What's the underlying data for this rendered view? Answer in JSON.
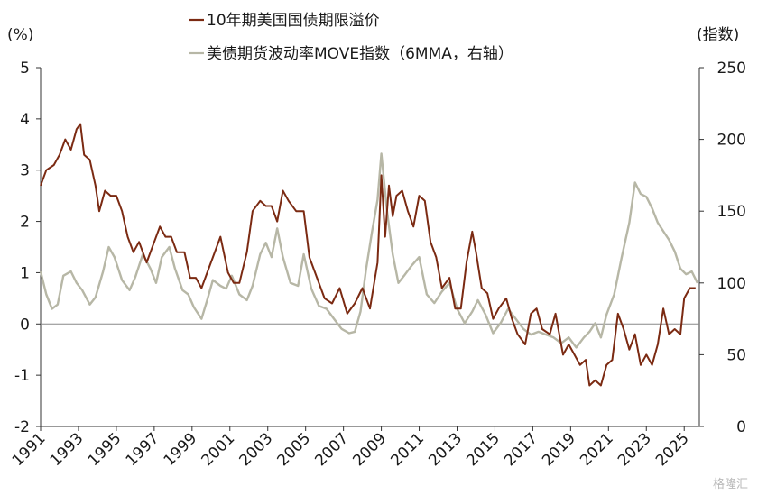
{
  "chart_data": {
    "type": "line",
    "left_unit": "(%)",
    "right_unit": "(指数)",
    "left_ylim": [
      -2,
      5
    ],
    "left_ticks": [
      "5",
      "4",
      "3",
      "2",
      "1",
      "0",
      "-1",
      "-2"
    ],
    "right_ylim": [
      0,
      250
    ],
    "right_ticks": [
      "250",
      "200",
      "150",
      "100",
      "50",
      "0"
    ],
    "xlim": [
      1991,
      2025.8
    ],
    "x_ticks": [
      "1991",
      "1993",
      "1995",
      "1997",
      "1999",
      "2001",
      "2003",
      "2005",
      "2007",
      "2009",
      "2011",
      "2013",
      "2015",
      "2017",
      "2019",
      "2021",
      "2023",
      "2025"
    ],
    "legend_position": "top-center",
    "series": [
      {
        "name": "10年期美国国债期限溢价",
        "axis": "left",
        "color": "#7b2a12",
        "x": [
          1991.0,
          1991.3,
          1991.7,
          1992.0,
          1992.3,
          1992.6,
          1992.9,
          1993.1,
          1993.3,
          1993.6,
          1993.9,
          1994.1,
          1994.4,
          1994.7,
          1995.0,
          1995.3,
          1995.6,
          1995.9,
          1996.2,
          1996.6,
          1997.0,
          1997.3,
          1997.6,
          1997.9,
          1998.2,
          1998.6,
          1998.9,
          1999.2,
          1999.5,
          1999.8,
          2000.1,
          2000.5,
          2000.9,
          2001.2,
          2001.5,
          2001.9,
          2002.2,
          2002.6,
          2002.9,
          2003.2,
          2003.5,
          2003.8,
          2004.1,
          2004.5,
          2004.9,
          2005.2,
          2005.6,
          2006.0,
          2006.4,
          2006.8,
          2007.2,
          2007.6,
          2008.0,
          2008.4,
          2008.8,
          2009.0,
          2009.2,
          2009.4,
          2009.6,
          2009.8,
          2010.1,
          2010.4,
          2010.7,
          2011.0,
          2011.3,
          2011.6,
          2011.9,
          2012.2,
          2012.6,
          2012.9,
          2013.2,
          2013.5,
          2013.8,
          2014.0,
          2014.3,
          2014.6,
          2014.9,
          2015.2,
          2015.6,
          2015.9,
          2016.2,
          2016.6,
          2016.9,
          2017.2,
          2017.5,
          2017.9,
          2018.2,
          2018.6,
          2018.9,
          2019.2,
          2019.5,
          2019.8,
          2020.0,
          2020.3,
          2020.6,
          2020.9,
          2021.2,
          2021.5,
          2021.8,
          2022.1,
          2022.4,
          2022.7,
          2023.0,
          2023.3,
          2023.6,
          2023.9,
          2024.2,
          2024.5,
          2024.8,
          2025.0,
          2025.3,
          2025.6
        ],
        "values": [
          2.7,
          3.0,
          3.1,
          3.3,
          3.6,
          3.4,
          3.8,
          3.9,
          3.3,
          3.2,
          2.7,
          2.2,
          2.6,
          2.5,
          2.5,
          2.2,
          1.7,
          1.4,
          1.6,
          1.2,
          1.6,
          1.9,
          1.7,
          1.7,
          1.4,
          1.4,
          0.9,
          0.9,
          0.7,
          1.0,
          1.3,
          1.7,
          1.0,
          0.8,
          0.8,
          1.4,
          2.2,
          2.4,
          2.3,
          2.3,
          2.0,
          2.6,
          2.4,
          2.2,
          2.2,
          1.3,
          0.9,
          0.5,
          0.4,
          0.7,
          0.2,
          0.4,
          0.7,
          0.3,
          1.2,
          2.9,
          1.7,
          2.7,
          2.1,
          2.5,
          2.6,
          2.2,
          1.9,
          2.5,
          2.4,
          1.6,
          1.3,
          0.7,
          0.9,
          0.3,
          0.3,
          1.2,
          1.8,
          1.4,
          0.7,
          0.6,
          0.1,
          0.3,
          0.5,
          0.1,
          -0.2,
          -0.4,
          0.2,
          0.3,
          -0.1,
          -0.2,
          0.2,
          -0.6,
          -0.4,
          -0.6,
          -0.8,
          -0.7,
          -1.2,
          -1.1,
          -1.2,
          -0.8,
          -0.7,
          0.2,
          -0.1,
          -0.5,
          -0.2,
          -0.8,
          -0.6,
          -0.8,
          -0.4,
          0.3,
          -0.2,
          -0.1,
          -0.2,
          0.5,
          0.7,
          0.7
        ]
      },
      {
        "name": "美债期货波动率MOVE指数（6MMA，右轴）",
        "axis": "right",
        "color": "#b7b7a6",
        "x": [
          1991.0,
          1991.3,
          1991.6,
          1991.9,
          1992.2,
          1992.6,
          1992.9,
          1993.2,
          1993.6,
          1993.9,
          1994.3,
          1994.6,
          1994.9,
          1995.3,
          1995.7,
          1996.0,
          1996.4,
          1996.8,
          1997.1,
          1997.4,
          1997.8,
          1998.1,
          1998.5,
          1998.8,
          1999.1,
          1999.5,
          1999.8,
          2000.1,
          2000.5,
          2000.8,
          2001.1,
          2001.5,
          2001.9,
          2002.2,
          2002.6,
          2002.9,
          2003.2,
          2003.5,
          2003.8,
          2004.2,
          2004.6,
          2004.9,
          2005.3,
          2005.7,
          2006.1,
          2006.5,
          2006.9,
          2007.3,
          2007.6,
          2007.9,
          2008.2,
          2008.5,
          2008.8,
          2009.0,
          2009.3,
          2009.6,
          2009.9,
          2010.2,
          2010.6,
          2011.0,
          2011.4,
          2011.8,
          2012.2,
          2012.6,
          2013.0,
          2013.4,
          2013.8,
          2014.1,
          2014.5,
          2014.9,
          2015.3,
          2015.7,
          2016.1,
          2016.5,
          2016.9,
          2017.3,
          2017.7,
          2018.1,
          2018.5,
          2018.9,
          2019.3,
          2019.7,
          2020.0,
          2020.3,
          2020.6,
          2020.9,
          2021.3,
          2021.7,
          2022.1,
          2022.4,
          2022.7,
          2023.0,
          2023.3,
          2023.6,
          2023.9,
          2024.2,
          2024.5,
          2024.8,
          2025.1,
          2025.4,
          2025.7
        ],
        "values": [
          108,
          92,
          82,
          85,
          105,
          108,
          100,
          95,
          85,
          90,
          108,
          125,
          118,
          102,
          95,
          104,
          120,
          110,
          100,
          118,
          125,
          110,
          95,
          92,
          83,
          75,
          88,
          102,
          98,
          96,
          105,
          92,
          88,
          98,
          120,
          128,
          118,
          138,
          118,
          100,
          98,
          120,
          96,
          84,
          82,
          75,
          68,
          65,
          66,
          80,
          110,
          135,
          158,
          190,
          150,
          120,
          100,
          105,
          112,
          118,
          92,
          86,
          94,
          100,
          82,
          72,
          80,
          88,
          78,
          65,
          72,
          82,
          75,
          68,
          64,
          66,
          64,
          62,
          58,
          62,
          55,
          62,
          66,
          72,
          62,
          78,
          92,
          118,
          142,
          170,
          162,
          160,
          152,
          142,
          136,
          130,
          122,
          110,
          106,
          108,
          100
        ]
      }
    ]
  },
  "watermark": "格隆汇"
}
